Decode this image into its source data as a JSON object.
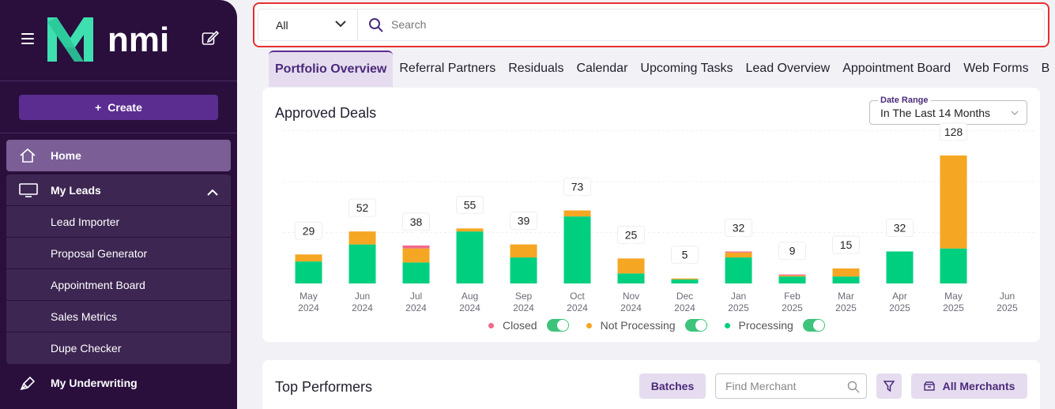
{
  "sidebar": {
    "brand": "nmi",
    "create_label": "Create",
    "home_label": "Home",
    "my_leads_label": "My Leads",
    "sub_items": [
      "Lead Importer",
      "Proposal Generator",
      "Appointment Board",
      "Sales Metrics",
      "Dupe Checker"
    ],
    "underwriting_label": "My Underwriting"
  },
  "search": {
    "scope_value": "All",
    "placeholder": "Search"
  },
  "tabs": [
    "Portfolio Overview",
    "Referral Partners",
    "Residuals",
    "Calendar",
    "Upcoming Tasks",
    "Lead Overview",
    "Appointment Board",
    "Web Forms",
    "B"
  ],
  "active_tab": "Portfolio Overview",
  "approved_deals": {
    "title": "Approved Deals",
    "date_range_label": "Date Range",
    "date_range_value": "In The Last 14 Months"
  },
  "legend": [
    {
      "label": "Closed",
      "color": "#f06a8a"
    },
    {
      "label": "Not Processing",
      "color": "#f5a623"
    },
    {
      "label": "Processing",
      "color": "#00cf7f"
    }
  ],
  "chart_data": {
    "type": "bar",
    "stacked": true,
    "title": "Approved Deals",
    "categories": [
      "May 2024",
      "Jun 2024",
      "Jul 2024",
      "Aug 2024",
      "Sep 2024",
      "Oct 2024",
      "Nov 2024",
      "Dec 2024",
      "Jan 2025",
      "Feb 2025",
      "Mar 2025",
      "Apr 2025",
      "May 2025",
      "Jun 2025"
    ],
    "category_lines": [
      [
        "May",
        "2024"
      ],
      [
        "Jun",
        "2024"
      ],
      [
        "Jul",
        "2024"
      ],
      [
        "Aug",
        "2024"
      ],
      [
        "Sep",
        "2024"
      ],
      [
        "Oct",
        "2024"
      ],
      [
        "Nov",
        "2024"
      ],
      [
        "Dec",
        "2024"
      ],
      [
        "Jan",
        "2025"
      ],
      [
        "Feb",
        "2025"
      ],
      [
        "Mar",
        "2025"
      ],
      [
        "Apr",
        "2025"
      ],
      [
        "May",
        "2025"
      ],
      [
        "Jun",
        "2025"
      ]
    ],
    "totals": [
      29,
      52,
      38,
      55,
      39,
      73,
      25,
      5,
      32,
      9,
      15,
      32,
      128,
      0
    ],
    "series": [
      {
        "name": "Processing",
        "color": "#00cf7f",
        "values": [
          22,
          39,
          21,
          52,
          26,
          67,
          10,
          4,
          26,
          7,
          7,
          32,
          35,
          0
        ]
      },
      {
        "name": "Not Processing",
        "color": "#f5a623",
        "values": [
          7,
          13,
          14,
          3,
          13,
          6,
          15,
          1,
          5,
          1,
          8,
          0,
          93,
          0
        ]
      },
      {
        "name": "Closed",
        "color": "#f06a8a",
        "values": [
          0,
          0,
          3,
          0,
          0,
          0,
          0,
          0,
          1,
          1,
          0,
          0,
          0,
          0
        ]
      }
    ],
    "ylim": [
      0,
      150
    ],
    "legend": [
      "Closed",
      "Not Processing",
      "Processing"
    ]
  },
  "top_performers": {
    "title": "Top Performers",
    "batches_label": "Batches",
    "find_placeholder": "Find Merchant",
    "all_merchants_label": "All Merchants"
  }
}
